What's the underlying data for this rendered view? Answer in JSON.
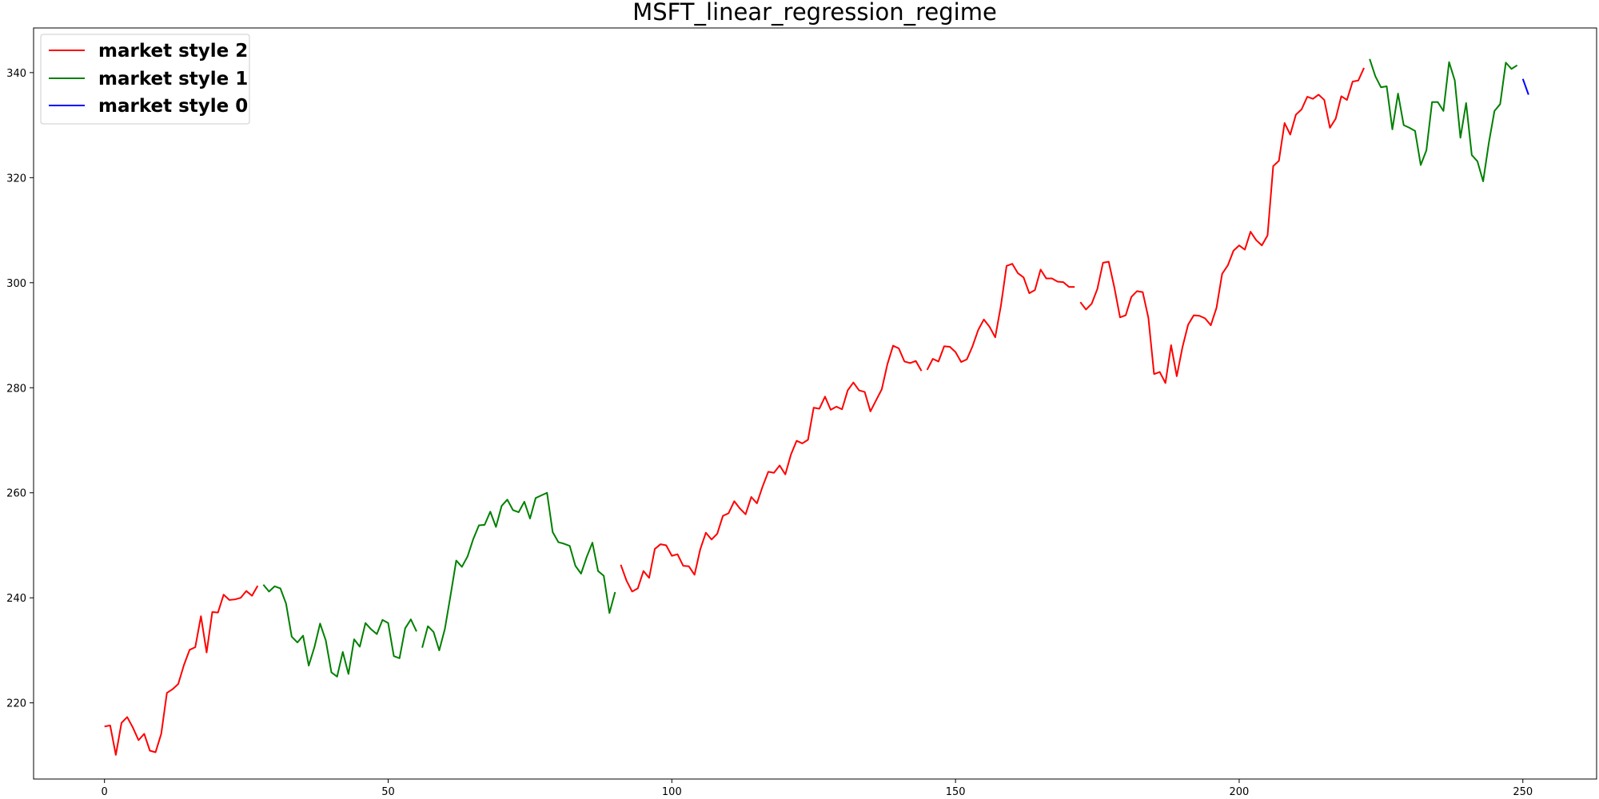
{
  "chart_data": {
    "type": "line",
    "title": "MSFT_linear_regression_regime",
    "xlabel": "",
    "ylabel": "",
    "xlim": [
      -12.5,
      263
    ],
    "ylim": [
      205.5,
      348.5
    ],
    "xticks": [
      0,
      50,
      100,
      150,
      200,
      250
    ],
    "yticks": [
      220,
      240,
      260,
      280,
      300,
      320,
      340
    ],
    "grid": false,
    "legend_position": "top-left",
    "legend": [
      {
        "name": "market style 2",
        "color": "#ff0000"
      },
      {
        "name": "market style 1",
        "color": "#008000"
      },
      {
        "name": "market style 0",
        "color": "#0000ff"
      }
    ],
    "segments": [
      {
        "style": "market style 2",
        "color": "#ff0000",
        "x_start": 0,
        "values": [
          215.5,
          215.7,
          210.1,
          216.2,
          217.3,
          215.3,
          212.9,
          214.1,
          210.9,
          210.6,
          214.1,
          221.9,
          222.6,
          223.6,
          227.2,
          230.1,
          230.6,
          236.5,
          229.6,
          237.3,
          237.2,
          240.6,
          239.6,
          239.7,
          240.0,
          241.3,
          240.4,
          242.3
        ]
      },
      {
        "style": "market style 1",
        "color": "#008000",
        "x_start": 28,
        "values": [
          242.5,
          241.2,
          242.2,
          241.8,
          238.9,
          232.6,
          231.5,
          232.8,
          227.1,
          230.6,
          235.1,
          231.9,
          225.8,
          225.0,
          229.7,
          225.5,
          232.1,
          230.7,
          235.2,
          234.0,
          233.1,
          235.8,
          235.2,
          228.9,
          228.5,
          234.2,
          235.9,
          233.6
        ]
      },
      {
        "style": "market style 1",
        "color": "#008000",
        "x_start": 56,
        "values": [
          230.5,
          234.6,
          233.5,
          230.0,
          234.1,
          240.5,
          247.1,
          245.9,
          247.9,
          251.2,
          253.8,
          253.9,
          256.4,
          253.5,
          257.5,
          258.7,
          256.7,
          256.3,
          258.3,
          255.1,
          259.0,
          259.5,
          260.0,
          252.5,
          250.6,
          250.3,
          249.9,
          246.1,
          244.6,
          247.8,
          250.5,
          245.1,
          244.2,
          237.1,
          241.1
        ]
      },
      {
        "style": "market style 2",
        "color": "#ff0000",
        "x_start": 91,
        "values": [
          246.3,
          243.3,
          241.2,
          241.8,
          245.1,
          243.8,
          249.3,
          250.2,
          250.0,
          248.0,
          248.3,
          246.1,
          246.0,
          244.4,
          249.2,
          252.4,
          251.1,
          252.2,
          255.6,
          256.1,
          258.4,
          257.0,
          255.9,
          259.2,
          258.0,
          261.2,
          264.0,
          263.8,
          265.2,
          263.5,
          267.3,
          269.9,
          269.4,
          270.1,
          276.2,
          276.0,
          278.3,
          275.8,
          276.4,
          275.9,
          279.5,
          281.0,
          279.5,
          279.2,
          275.5,
          277.6,
          279.7,
          284.5,
          288.0,
          287.5,
          285.0,
          284.7,
          285.1,
          283.2
        ]
      },
      {
        "style": "market style 2",
        "color": "#ff0000",
        "x_start": 145,
        "values": [
          283.4,
          285.5,
          285.0,
          287.9,
          287.8,
          286.8,
          284.9,
          285.4,
          287.9,
          291.0,
          293.0,
          291.6,
          289.6,
          295.6,
          303.2,
          303.6,
          301.8,
          301.0,
          298.0,
          298.6,
          302.5,
          300.8,
          300.8,
          300.2,
          300.1,
          299.2,
          299.2
        ]
      },
      {
        "style": "market style 2",
        "color": "#ff0000",
        "x_start": 172,
        "values": [
          296.3,
          294.9,
          296.0,
          298.8,
          303.8,
          304.0,
          299.1,
          293.4,
          293.8,
          297.3,
          298.4,
          298.2,
          293.3,
          282.6,
          283.0,
          280.9,
          288.1,
          282.2,
          287.7,
          292.0,
          293.8,
          293.7,
          293.2,
          291.9,
          295.2,
          301.7,
          303.3,
          306.1,
          307.1,
          306.3,
          309.7,
          308.1,
          307.1,
          309.0,
          322.2,
          323.2,
          330.4,
          328.2,
          332.0,
          333.0,
          335.4,
          335.0,
          335.8,
          334.8,
          329.5,
          331.2,
          335.5,
          334.8,
          338.3,
          338.5,
          340.9
        ]
      },
      {
        "style": "market style 1",
        "color": "#008000",
        "x_start": 223,
        "values": [
          342.6,
          339.3,
          337.2,
          337.4,
          329.2,
          336.0,
          330.0,
          329.5,
          328.9,
          322.4,
          325.2,
          334.4,
          334.4,
          332.7,
          342.0,
          338.5,
          327.6,
          334.2,
          324.3,
          323.1,
          319.3,
          326.6,
          332.7,
          334.0,
          341.9,
          340.7,
          341.4
        ]
      },
      {
        "style": "market style 0",
        "color": "#0000ff",
        "x_start": 250,
        "values": [
          338.8,
          335.8
        ]
      }
    ]
  }
}
